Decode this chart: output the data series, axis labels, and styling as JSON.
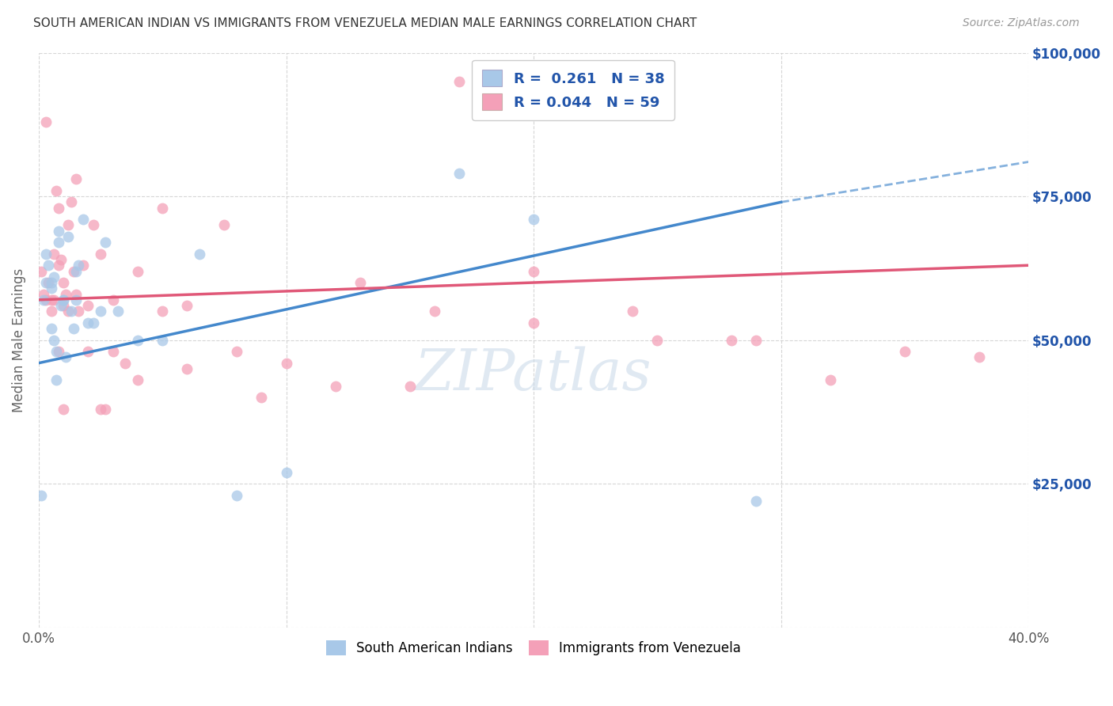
{
  "title": "SOUTH AMERICAN INDIAN VS IMMIGRANTS FROM VENEZUELA MEDIAN MALE EARNINGS CORRELATION CHART",
  "source": "Source: ZipAtlas.com",
  "ylabel": "Median Male Earnings",
  "xlim": [
    0,
    0.4
  ],
  "ylim": [
    0,
    100000
  ],
  "yticks": [
    0,
    25000,
    50000,
    75000,
    100000
  ],
  "ytick_labels_right": [
    "",
    "$25,000",
    "$50,000",
    "$75,000",
    "$100,000"
  ],
  "xticks": [
    0.0,
    0.1,
    0.2,
    0.3,
    0.4
  ],
  "xtick_labels": [
    "0.0%",
    "",
    "",
    "",
    "40.0%"
  ],
  "color_blue": "#a8c8e8",
  "color_pink": "#f4a0b8",
  "color_blue_line": "#4488cc",
  "color_pink_line": "#e05878",
  "color_blue_text": "#2255aa",
  "background_color": "#ffffff",
  "grid_color": "#cccccc",
  "blue_x": [
    0.001,
    0.002,
    0.003,
    0.003,
    0.004,
    0.005,
    0.005,
    0.006,
    0.006,
    0.007,
    0.007,
    0.008,
    0.008,
    0.009,
    0.01,
    0.011,
    0.012,
    0.013,
    0.014,
    0.015,
    0.016,
    0.018,
    0.02,
    0.022,
    0.025,
    0.027,
    0.032,
    0.04,
    0.05,
    0.065,
    0.08,
    0.1,
    0.17,
    0.2,
    0.29,
    0.005,
    0.01,
    0.015
  ],
  "blue_y": [
    23000,
    57000,
    60000,
    65000,
    63000,
    52000,
    59000,
    50000,
    61000,
    48000,
    43000,
    67000,
    69000,
    56000,
    57000,
    47000,
    68000,
    55000,
    52000,
    57000,
    63000,
    71000,
    53000,
    53000,
    55000,
    67000,
    55000,
    50000,
    50000,
    65000,
    23000,
    27000,
    79000,
    71000,
    22000,
    60000,
    57000,
    62000
  ],
  "pink_x": [
    0.001,
    0.002,
    0.003,
    0.003,
    0.004,
    0.005,
    0.006,
    0.006,
    0.007,
    0.008,
    0.008,
    0.009,
    0.01,
    0.011,
    0.012,
    0.013,
    0.014,
    0.015,
    0.016,
    0.018,
    0.02,
    0.022,
    0.025,
    0.027,
    0.03,
    0.035,
    0.04,
    0.05,
    0.06,
    0.075,
    0.09,
    0.12,
    0.15,
    0.17,
    0.2,
    0.25,
    0.29,
    0.35,
    0.38,
    0.005,
    0.008,
    0.01,
    0.012,
    0.015,
    0.02,
    0.025,
    0.03,
    0.04,
    0.05,
    0.06,
    0.08,
    0.1,
    0.13,
    0.16,
    0.2,
    0.24,
    0.28,
    0.32,
    0.01
  ],
  "pink_y": [
    62000,
    58000,
    57000,
    88000,
    60000,
    55000,
    57000,
    65000,
    76000,
    63000,
    73000,
    64000,
    56000,
    58000,
    70000,
    74000,
    62000,
    58000,
    55000,
    63000,
    56000,
    70000,
    38000,
    38000,
    48000,
    46000,
    43000,
    55000,
    45000,
    70000,
    40000,
    42000,
    42000,
    95000,
    62000,
    50000,
    50000,
    48000,
    47000,
    57000,
    48000,
    60000,
    55000,
    78000,
    48000,
    65000,
    57000,
    62000,
    73000,
    56000,
    48000,
    46000,
    60000,
    55000,
    53000,
    55000,
    50000,
    43000,
    38000
  ],
  "blue_line_x0": 0.0,
  "blue_line_y0": 46000,
  "blue_line_x1": 0.3,
  "blue_line_y1": 74000,
  "blue_line_x2": 0.4,
  "blue_line_y2": 81000,
  "pink_line_x0": 0.0,
  "pink_line_y0": 57000,
  "pink_line_x1": 0.4,
  "pink_line_y1": 63000
}
